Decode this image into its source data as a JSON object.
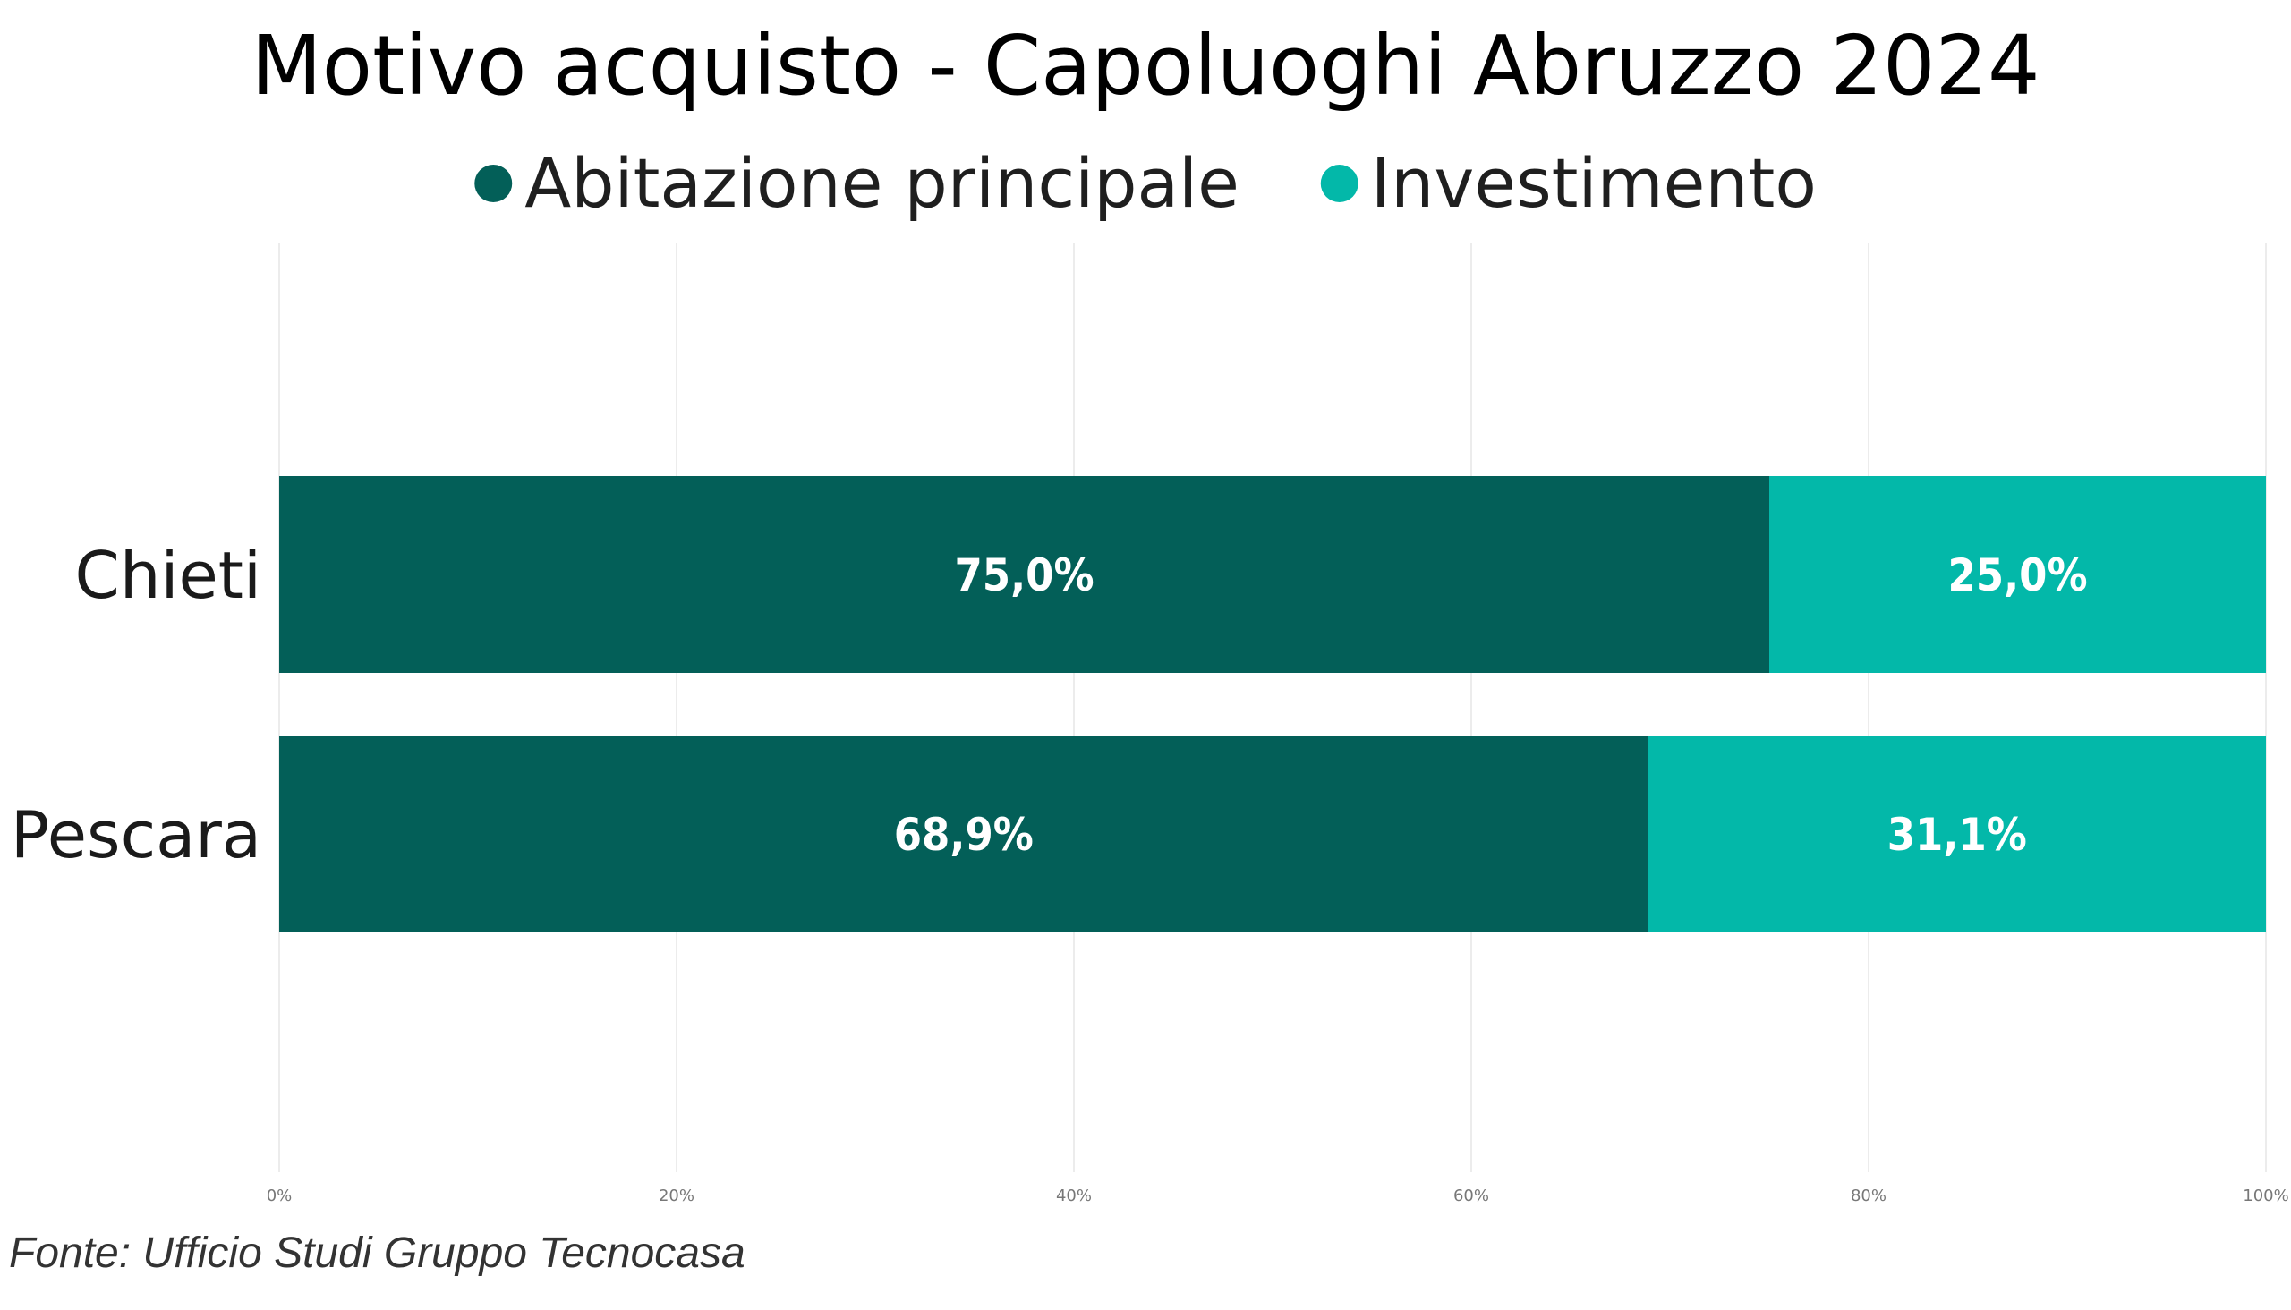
{
  "chart_data": {
    "type": "bar",
    "orientation": "horizontal",
    "stacked": true,
    "title": "Motivo acquisto - Capoluoghi Abruzzo 2024",
    "categories": [
      "Chieti",
      "Pescara"
    ],
    "series": [
      {
        "name": "Abitazione principale",
        "values": [
          75.0,
          68.9
        ],
        "labels": [
          "75,0%",
          "68,9%"
        ],
        "color": "#035F58"
      },
      {
        "name": "Investimento",
        "values": [
          25.0,
          31.1
        ],
        "labels": [
          "25,0%",
          "31,1%"
        ],
        "color": "#03B8A9"
      }
    ],
    "xlim": [
      0,
      100
    ],
    "x_ticks": [
      0,
      20,
      40,
      60,
      80,
      100
    ],
    "x_tick_labels": [
      "0%",
      "20%",
      "40%",
      "60%",
      "80%",
      "100%"
    ],
    "legend_position": "top-center",
    "grid": true,
    "source": "Fonte: Ufficio Studi Gruppo Tecnocasa"
  }
}
